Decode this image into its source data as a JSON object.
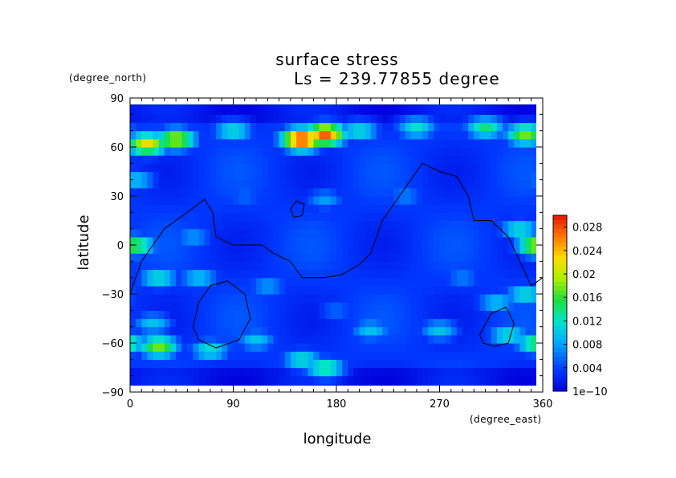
{
  "chart_data": {
    "type": "heatmap",
    "title": "surface stress",
    "subtitle": "Ls = 239.77855 degree",
    "xlabel": "longitude",
    "ylabel": "latitude",
    "x_unit": "(degree_east)",
    "y_unit": "(degree_north)",
    "xlim": [
      0,
      360
    ],
    "ylim": [
      -90,
      90
    ],
    "x_ticks": [
      0,
      90,
      180,
      270,
      360
    ],
    "y_ticks": [
      -90,
      -60,
      -30,
      0,
      30,
      60,
      90
    ],
    "x_tick_labels": [
      "0",
      "90",
      "180",
      "270",
      "360"
    ],
    "y_tick_labels": [
      "−90",
      "−60",
      "−30",
      "0",
      "30",
      "60",
      "90"
    ],
    "colorbar": {
      "min": 0,
      "max": 0.03,
      "tick_labels": [
        "1e−10",
        "0.004",
        "0.008",
        "0.012",
        "0.016",
        "0.02",
        "0.024",
        "0.028"
      ],
      "tick_values": [
        0,
        0.004,
        0.008,
        0.012,
        0.016,
        0.02,
        0.024,
        0.028
      ]
    },
    "hotspots": [
      {
        "lon": 15,
        "lat": 62,
        "value": 0.022
      },
      {
        "lon": 40,
        "lat": 65,
        "value": 0.02
      },
      {
        "lon": 90,
        "lat": 70,
        "value": 0.012
      },
      {
        "lon": 150,
        "lat": 65,
        "value": 0.03
      },
      {
        "lon": 170,
        "lat": 68,
        "value": 0.028
      },
      {
        "lon": 200,
        "lat": 70,
        "value": 0.012
      },
      {
        "lon": 250,
        "lat": 72,
        "value": 0.012
      },
      {
        "lon": 310,
        "lat": 72,
        "value": 0.014
      },
      {
        "lon": 345,
        "lat": 68,
        "value": 0.018
      },
      {
        "lon": 5,
        "lat": 40,
        "value": 0.01
      },
      {
        "lon": 5,
        "lat": 0,
        "value": 0.016
      },
      {
        "lon": 355,
        "lat": 0,
        "value": 0.02
      },
      {
        "lon": 340,
        "lat": 10,
        "value": 0.012
      },
      {
        "lon": 345,
        "lat": -30,
        "value": 0.012
      },
      {
        "lon": 55,
        "lat": 5,
        "value": 0.008
      },
      {
        "lon": 25,
        "lat": -20,
        "value": 0.012
      },
      {
        "lon": 60,
        "lat": -20,
        "value": 0.01
      },
      {
        "lon": 20,
        "lat": -48,
        "value": 0.01
      },
      {
        "lon": 25,
        "lat": -62,
        "value": 0.018
      },
      {
        "lon": 70,
        "lat": -64,
        "value": 0.012
      },
      {
        "lon": 110,
        "lat": -58,
        "value": 0.01
      },
      {
        "lon": 150,
        "lat": -70,
        "value": 0.012
      },
      {
        "lon": 170,
        "lat": -75,
        "value": 0.014
      },
      {
        "lon": 210,
        "lat": -52,
        "value": 0.01
      },
      {
        "lon": 270,
        "lat": -52,
        "value": 0.01
      },
      {
        "lon": 320,
        "lat": -35,
        "value": 0.01
      },
      {
        "lon": 330,
        "lat": -55,
        "value": 0.012
      },
      {
        "lon": 355,
        "lat": -60,
        "value": 0.016
      },
      {
        "lon": 120,
        "lat": -25,
        "value": 0.008
      },
      {
        "lon": 170,
        "lat": 28,
        "value": 0.008
      },
      {
        "lon": 240,
        "lat": 30,
        "value": 0.007
      },
      {
        "lon": 290,
        "lat": -20,
        "value": 0.007
      },
      {
        "lon": 100,
        "lat": 30,
        "value": 0.006
      },
      {
        "lon": 180,
        "lat": -40,
        "value": 0.006
      }
    ],
    "contours": [
      [
        [
          0,
          -30
        ],
        [
          10,
          -10
        ],
        [
          30,
          10
        ],
        [
          50,
          20
        ],
        [
          65,
          28
        ],
        [
          72,
          20
        ],
        [
          75,
          5
        ],
        [
          90,
          0
        ],
        [
          100,
          0
        ],
        [
          115,
          0
        ],
        [
          125,
          -5
        ],
        [
          140,
          -10
        ],
        [
          150,
          -20
        ],
        [
          170,
          -20
        ],
        [
          185,
          -18
        ],
        [
          200,
          -12
        ],
        [
          210,
          -5
        ],
        [
          220,
          15
        ],
        [
          230,
          25
        ],
        [
          240,
          35
        ],
        [
          255,
          50
        ],
        [
          270,
          45
        ],
        [
          285,
          42
        ],
        [
          295,
          30
        ],
        [
          300,
          15
        ],
        [
          315,
          15
        ],
        [
          330,
          5
        ],
        [
          340,
          -10
        ],
        [
          350,
          -25
        ],
        [
          360,
          -20
        ]
      ],
      [
        [
          55,
          -50
        ],
        [
          60,
          -35
        ],
        [
          70,
          -25
        ],
        [
          85,
          -22
        ],
        [
          100,
          -30
        ],
        [
          105,
          -45
        ],
        [
          95,
          -58
        ],
        [
          75,
          -63
        ],
        [
          60,
          -58
        ],
        [
          55,
          -50
        ]
      ],
      [
        [
          140,
          22
        ],
        [
          145,
          27
        ],
        [
          152,
          25
        ],
        [
          150,
          18
        ],
        [
          143,
          17
        ],
        [
          140,
          22
        ]
      ],
      [
        [
          305,
          -55
        ],
        [
          315,
          -42
        ],
        [
          328,
          -38
        ],
        [
          335,
          -48
        ],
        [
          330,
          -60
        ],
        [
          318,
          -62
        ],
        [
          308,
          -60
        ],
        [
          305,
          -55
        ]
      ]
    ]
  }
}
